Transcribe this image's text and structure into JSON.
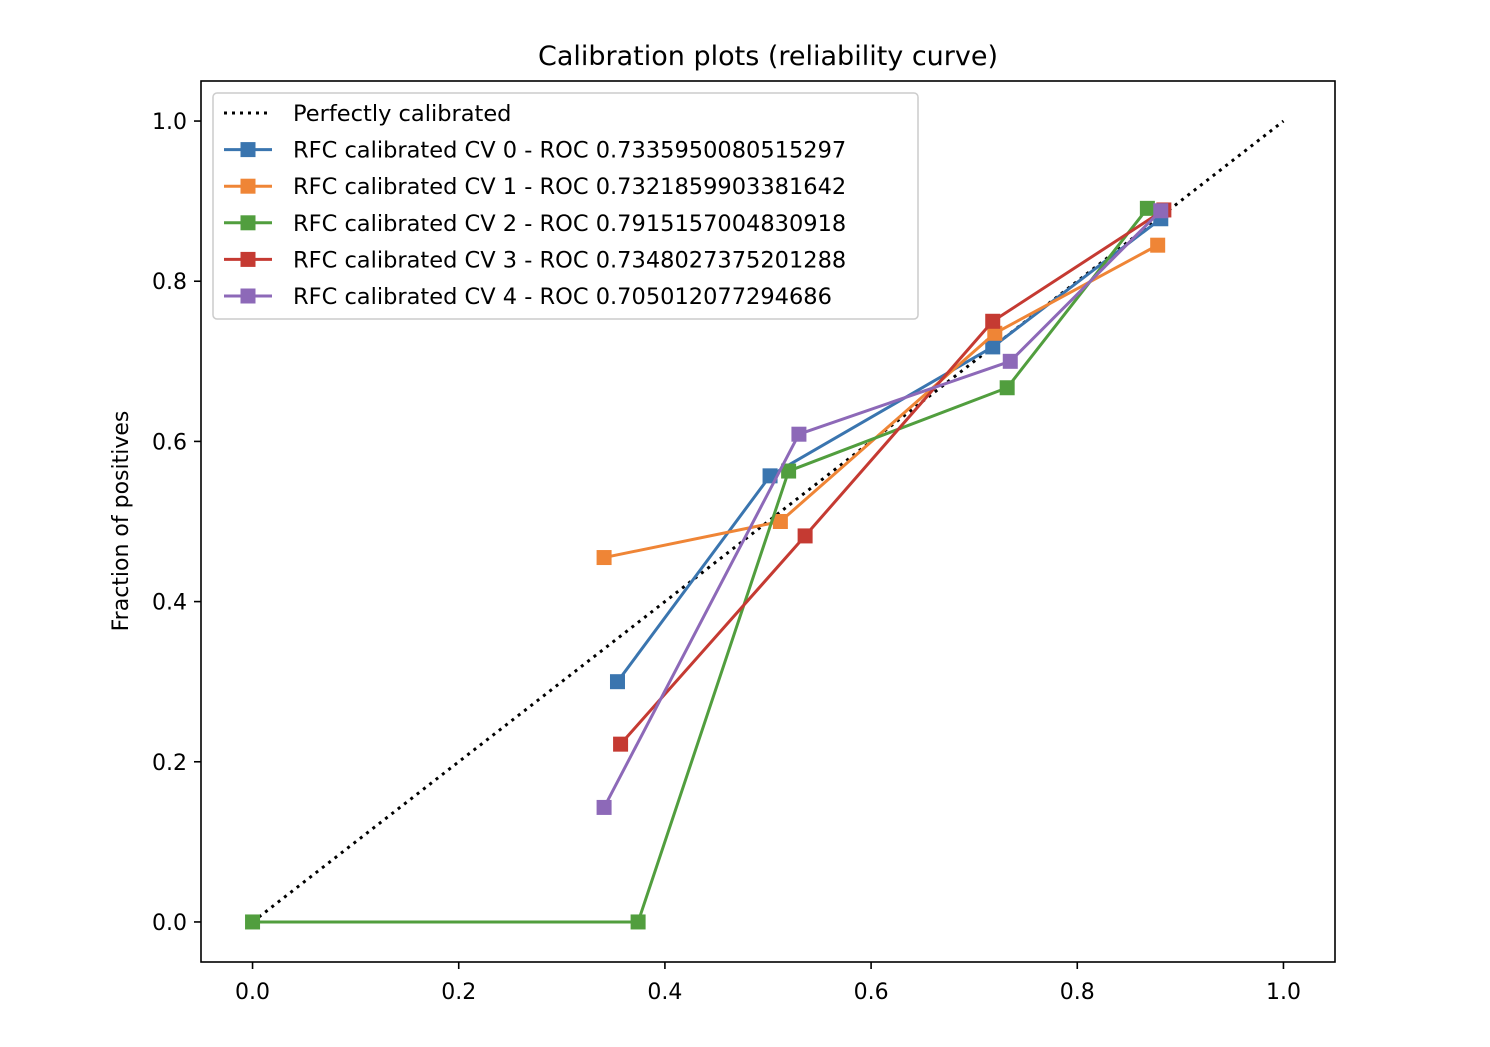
{
  "chart_data": {
    "type": "line",
    "title": "Calibration plots  (reliability curve)",
    "xlabel": "",
    "ylabel": "Fraction of positives",
    "xlim": [
      -0.05,
      1.05
    ],
    "ylim": [
      -0.05,
      1.05
    ],
    "x_ticks": [
      0.0,
      0.2,
      0.4,
      0.6,
      0.8,
      1.0
    ],
    "y_ticks": [
      0.0,
      0.2,
      0.4,
      0.6,
      0.8,
      1.0
    ],
    "x_tick_labels": [
      "0.0",
      "0.2",
      "0.4",
      "0.6",
      "0.8",
      "1.0"
    ],
    "y_tick_labels": [
      "0.0",
      "0.2",
      "0.4",
      "0.6",
      "0.8",
      "1.0"
    ],
    "grid": false,
    "legend_position": "upper-left",
    "reference_line": {
      "name": "Perfectly calibrated",
      "style": "dotted",
      "color": "#000000",
      "x": [
        0.0,
        1.0
      ],
      "y": [
        0.0,
        1.0
      ]
    },
    "series": [
      {
        "name": "RFC calibrated CV 0 - ROC 0.7335950080515297",
        "color": "#3a75af",
        "marker": "square",
        "x": [
          0.354,
          0.502,
          0.718,
          0.881
        ],
        "y": [
          0.3,
          0.557,
          0.718,
          0.878
        ]
      },
      {
        "name": "RFC calibrated CV 1 - ROC 0.7321859903381642",
        "color": "#ef8536",
        "marker": "square",
        "x": [
          0.341,
          0.512,
          0.72,
          0.878
        ],
        "y": [
          0.455,
          0.5,
          0.735,
          0.845
        ]
      },
      {
        "name": "RFC calibrated CV 2 - ROC 0.7915157004830918",
        "color": "#519e3e",
        "marker": "square",
        "x": [
          0.0,
          0.374,
          0.52,
          0.732,
          0.868
        ],
        "y": [
          0.0,
          0.0,
          0.563,
          0.667,
          0.891
        ]
      },
      {
        "name": "RFC calibrated CV 3 - ROC 0.7348027375201288",
        "color": "#c53a32",
        "marker": "square",
        "x": [
          0.357,
          0.536,
          0.718,
          0.884
        ],
        "y": [
          0.222,
          0.482,
          0.75,
          0.889
        ]
      },
      {
        "name": "RFC calibrated CV 4 - ROC 0.705012077294686",
        "color": "#8d69b8",
        "marker": "square",
        "x": [
          0.341,
          0.53,
          0.735,
          0.881
        ],
        "y": [
          0.143,
          0.609,
          0.7,
          0.888
        ]
      }
    ]
  }
}
